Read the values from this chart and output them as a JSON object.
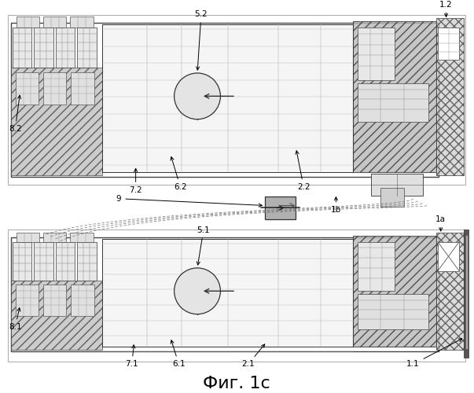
{
  "fig_label": "Фиг. 1c",
  "title_fontsize": 16,
  "background_color": "#ffffff",
  "label_fontsize": 7.5
}
